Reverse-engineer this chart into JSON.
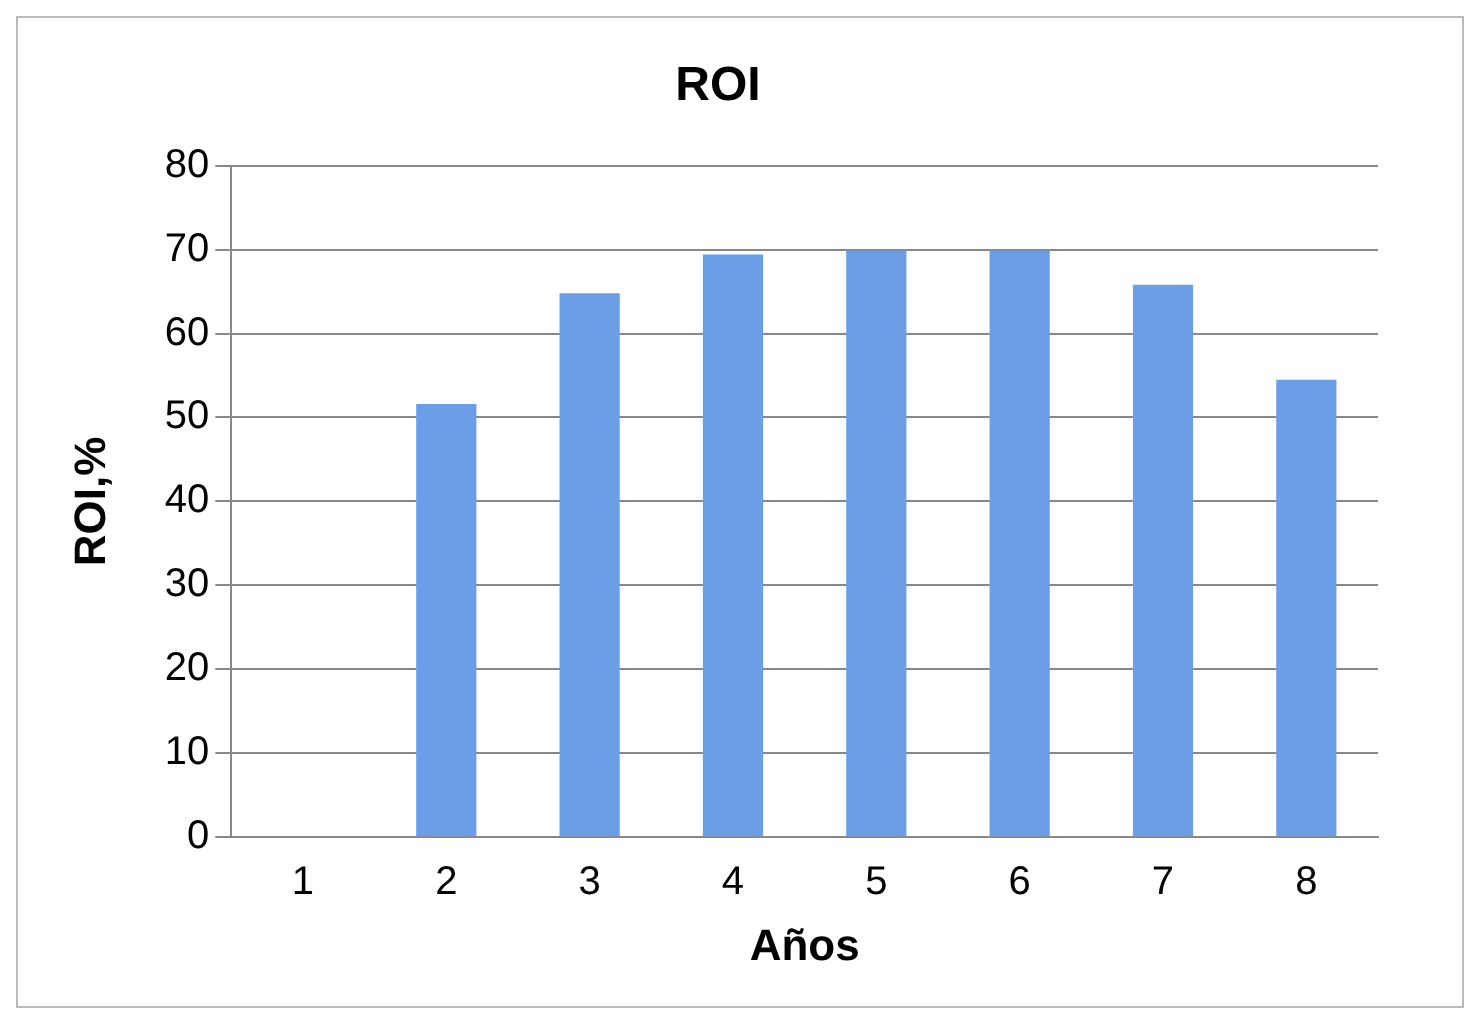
{
  "chart_data": {
    "type": "bar",
    "title": "ROI",
    "xlabel": "Años",
    "ylabel": "ROI,%",
    "categories": [
      "1",
      "2",
      "3",
      "4",
      "5",
      "6",
      "7",
      "8"
    ],
    "values": [
      0,
      51.6,
      64.8,
      69.4,
      69.9,
      69.9,
      65.8,
      54.5
    ],
    "color": "#6a9fe8",
    "ylim": [
      0,
      80
    ],
    "yticks": [
      0,
      10,
      20,
      30,
      40,
      50,
      60,
      70,
      80
    ],
    "grid": "y"
  }
}
